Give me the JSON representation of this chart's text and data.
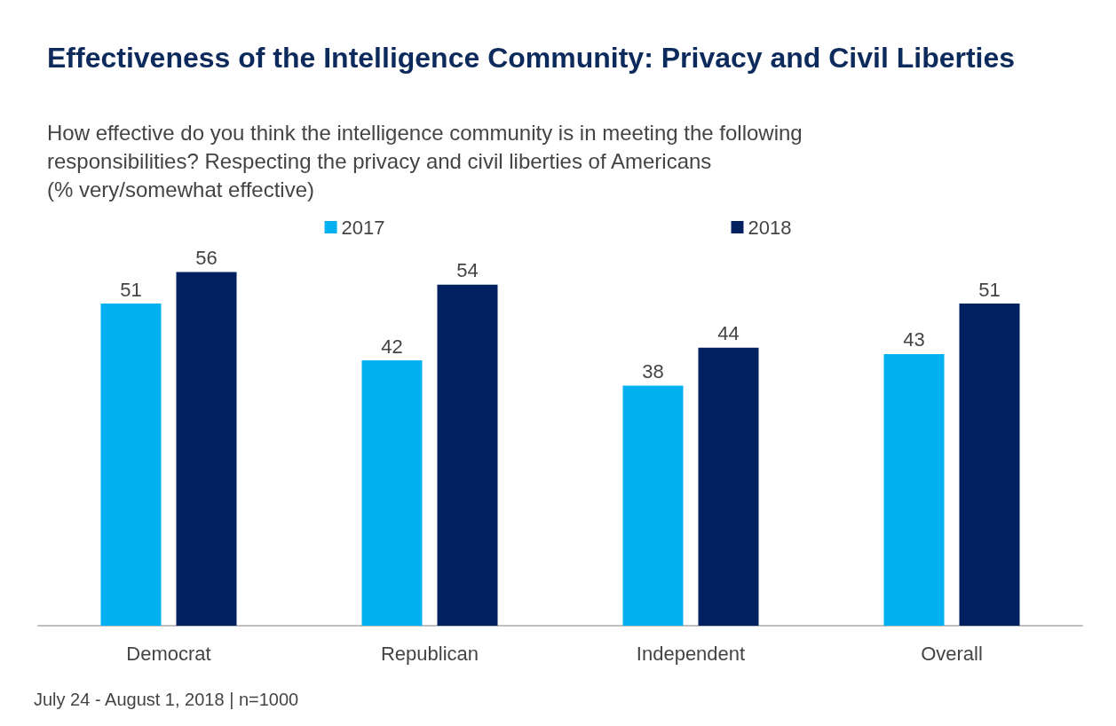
{
  "chart_data": {
    "type": "bar",
    "title": "Effectiveness of the Intelligence Community: Privacy and Civil Liberties",
    "subtitle": "How effective do you think the intelligence community is in meeting the following responsibilities? Respecting the privacy and civil liberties of Americans\n(% very/somewhat effective)",
    "categories": [
      "Democrat",
      "Republican",
      "Independent",
      "Overall"
    ],
    "series": [
      {
        "name": "2017",
        "color": "#00b0f0",
        "values": [
          51,
          42,
          38,
          43
        ]
      },
      {
        "name": "2018",
        "color": "#002060",
        "values": [
          56,
          54,
          44,
          51
        ]
      }
    ],
    "data_labels": true,
    "legend": "top",
    "annotations": [
      "July 24 - August 1, 2018 | n=1000"
    ]
  }
}
